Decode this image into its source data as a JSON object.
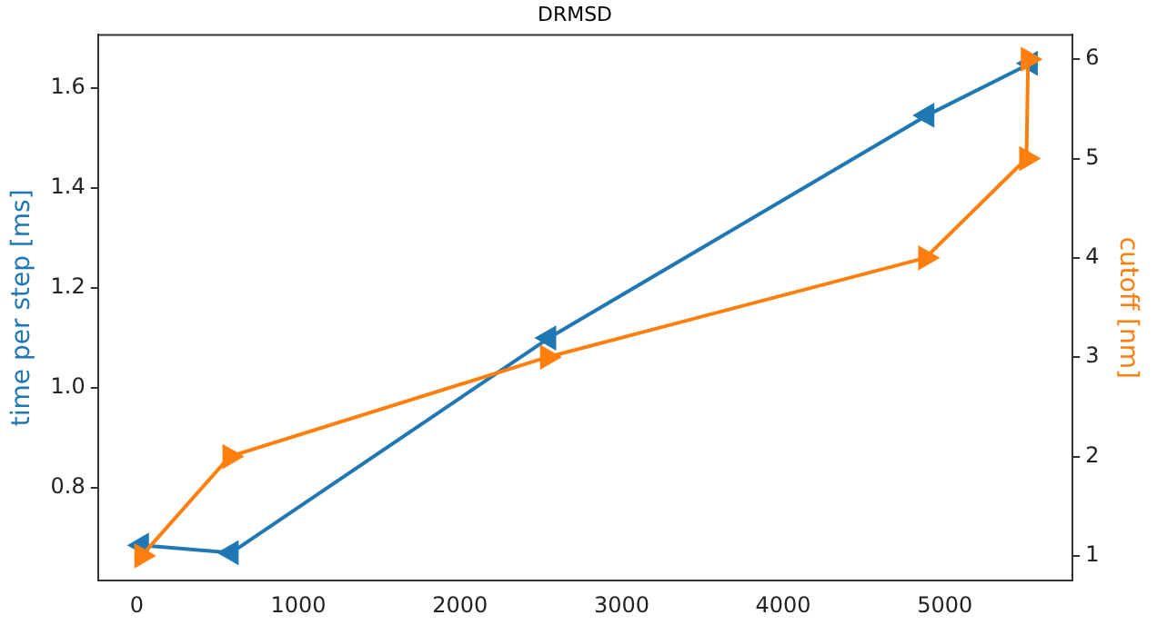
{
  "chart_data": {
    "type": "line",
    "title": "DRMSD",
    "ylabel": "time per step [ms]",
    "y2label": "cutoff [nm]",
    "x": [
      30,
      585,
      2550,
      4890,
      5530
    ],
    "series": [
      {
        "color": "#1f77b4",
        "values": [
          0.685,
          0.67,
          1.1,
          1.546,
          1.65
        ],
        "marker": "triangle"
      },
      {
        "color": "#ff7f0e",
        "x": [
          30,
          575,
          2540,
          4880,
          5505,
          5515
        ],
        "values": [
          1,
          2,
          3,
          4,
          5,
          6
        ],
        "axis": "y2",
        "marker": "triangle"
      }
    ],
    "xlim": [
      -240,
      5790
    ],
    "xticks": [
      0,
      1000,
      2000,
      3000,
      4000,
      5000
    ],
    "ylim": [
      0.614,
      1.707
    ],
    "yticks": [
      {
        "value": 0.8,
        "label": "0.8"
      },
      {
        "value": 1,
        "label": "1.0"
      },
      {
        "value": 1.2,
        "label": "1.2"
      },
      {
        "value": 1.4,
        "label": "1.4"
      },
      {
        "value": 1.6,
        "label": "1.6"
      }
    ],
    "y2lim": [
      0.75,
      6.245
    ],
    "y2ticks": [
      1,
      2,
      3,
      4,
      5,
      6
    ],
    "grid": false,
    "legend": false,
    "line_style": "solid"
  }
}
